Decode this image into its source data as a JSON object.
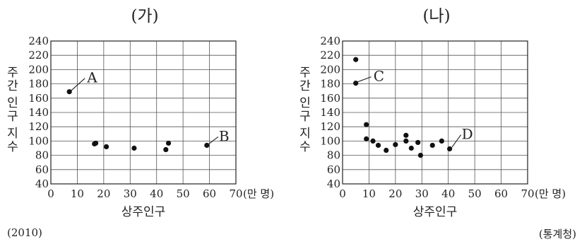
{
  "source_year": "(2010)",
  "source_org": "(통계청)",
  "chart_data": [
    {
      "type": "scatter",
      "title": "(가)",
      "xlabel": "상주인구",
      "x_unit": "(만 명)",
      "ylabel": "주간 인구 지수",
      "xlim": [
        0,
        70
      ],
      "ylim": [
        40,
        240
      ],
      "xticks": [
        0,
        10,
        20,
        30,
        40,
        50,
        60,
        70
      ],
      "yticks": [
        40,
        60,
        80,
        100,
        120,
        140,
        160,
        180,
        200,
        220,
        240
      ],
      "grid": true,
      "points": [
        {
          "x": 7,
          "y": 169
        },
        {
          "x": 16.5,
          "y": 96
        },
        {
          "x": 17,
          "y": 97
        },
        {
          "x": 21,
          "y": 92
        },
        {
          "x": 31.5,
          "y": 90
        },
        {
          "x": 43.5,
          "y": 88
        },
        {
          "x": 44.5,
          "y": 97
        },
        {
          "x": 59,
          "y": 94
        }
      ],
      "annotations": [
        {
          "label": "A",
          "x": 7,
          "y": 169
        },
        {
          "label": "B",
          "x": 59,
          "y": 94
        }
      ]
    },
    {
      "type": "scatter",
      "title": "(나)",
      "xlabel": "상주인구",
      "x_unit": "(만 명)",
      "ylabel": "주간 인구 지수",
      "xlim": [
        0,
        70
      ],
      "ylim": [
        40,
        240
      ],
      "xticks": [
        0,
        10,
        20,
        30,
        40,
        50,
        60,
        70
      ],
      "yticks": [
        40,
        60,
        80,
        100,
        120,
        140,
        160,
        180,
        200,
        220,
        240
      ],
      "grid": true,
      "points": [
        {
          "x": 5,
          "y": 214
        },
        {
          "x": 5,
          "y": 181
        },
        {
          "x": 9,
          "y": 123
        },
        {
          "x": 9,
          "y": 103
        },
        {
          "x": 11.5,
          "y": 100
        },
        {
          "x": 13.5,
          "y": 94
        },
        {
          "x": 16.5,
          "y": 87
        },
        {
          "x": 20,
          "y": 95
        },
        {
          "x": 24,
          "y": 108
        },
        {
          "x": 24,
          "y": 100
        },
        {
          "x": 26,
          "y": 90
        },
        {
          "x": 28.5,
          "y": 98
        },
        {
          "x": 29.5,
          "y": 80
        },
        {
          "x": 34,
          "y": 94
        },
        {
          "x": 37.5,
          "y": 100
        },
        {
          "x": 40.5,
          "y": 89
        }
      ],
      "annotations": [
        {
          "label": "C",
          "x": 5,
          "y": 181
        },
        {
          "label": "D",
          "x": 40.5,
          "y": 89
        }
      ]
    }
  ]
}
